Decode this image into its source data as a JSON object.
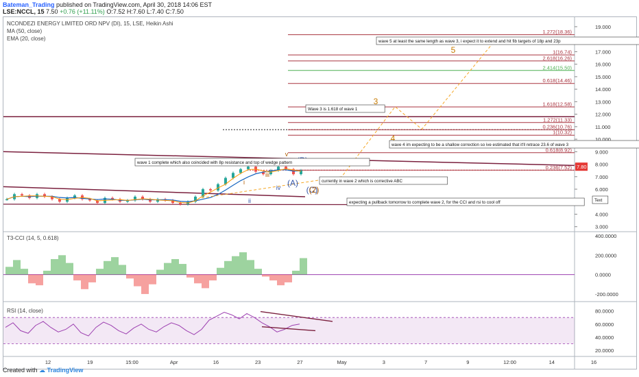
{
  "header": {
    "author": "Bateman_Trading",
    "published": "published on TradingView.com, April 30, 2018 14:06 EST",
    "symbol": "LSE:NCCL, 15",
    "price": "7.50",
    "change": "+0.76 (+11.11%)",
    "ohlc": "O:7.52 H:7.60 L:7.40 C:7.50"
  },
  "legend": {
    "title": "NCONDEZI ENERGY LIMITED ORD NPV (DI), 15, LSE, Heikin Ashi",
    "ma": "MA (50, close)",
    "ema": "EMA (20, close)",
    "cci": "T3-CCI (14, 5, 0.618)",
    "rsi": "RSI (14, close)"
  },
  "footer": {
    "created": "Created with",
    "brand": "TradingView"
  },
  "colors": {
    "bull": "#26a69a",
    "bear": "#ef5350",
    "fib": "#a8323e",
    "wave": "#f5a623",
    "rsi": "#9c3fb0",
    "price_tag": "#e53935"
  },
  "icons": {
    "tv_logo": "tradingview-cloud-icon"
  },
  "chart_data": [
    {
      "type": "candlestick",
      "price_scale": [
        3,
        19
      ],
      "yticks": [
        "19.000",
        "18.000",
        "17.000",
        "16.000",
        "15.000",
        "14.000",
        "13.000",
        "12.000",
        "11.000",
        "10.000",
        "9.000",
        "8.000",
        "7.000",
        "6.000",
        "5.000",
        "4.000",
        "3.000"
      ],
      "xticks": [
        "12",
        "19",
        "15:00",
        "Apr",
        "16",
        "23",
        "27",
        "May",
        "3",
        "7",
        "9",
        "12:00",
        "14",
        "16"
      ],
      "last_price_tag": "7.80",
      "price_path": [
        5.2,
        5.6,
        5.5,
        5.3,
        5.6,
        5.4,
        5.2,
        5.0,
        5.3,
        5.5,
        5.2,
        5.1,
        4.9,
        5.3,
        5.2,
        5.0,
        5.1,
        5.4,
        5.2,
        5.0,
        5.2,
        5.1,
        4.9,
        4.8,
        5.0,
        5.4,
        6.0,
        5.9,
        6.4,
        6.9,
        7.3,
        7.6,
        7.8,
        7.4,
        7.2,
        7.5,
        7.8,
        7.6,
        7.2,
        7.5
      ],
      "fib_levels": [
        {
          "label": "1.272(18.36)",
          "value": 18.36
        },
        {
          "label": "1(16.74)",
          "value": 16.74
        },
        {
          "label": "2.618(16.26)",
          "value": 16.26
        },
        {
          "label": "2.414(15.50)",
          "value": 15.5
        },
        {
          "label": "0.618(14.46)",
          "value": 14.46
        },
        {
          "label": "1.618(12.58)",
          "value": 12.58
        },
        {
          "label": "1.272(11.33)",
          "value": 11.33
        },
        {
          "label": "0.236(10.76)",
          "value": 10.76
        },
        {
          "label": "1(10.32)",
          "value": 10.32
        },
        {
          "label": "0.618(8.92)",
          "value": 8.92
        },
        {
          "label": "0.236(7.52)",
          "value": 7.52
        }
      ],
      "wave_labels": [
        "i",
        "ii",
        "iii",
        "iv",
        "v",
        "(A)",
        "(B)",
        "(C)",
        "(2)",
        "3",
        "4",
        "5"
      ],
      "wave_projection": [
        {
          "label": "(2)",
          "date_index": 38,
          "price": 7.0
        },
        {
          "label": "3",
          "date_index": 44,
          "price": 12.6
        },
        {
          "label": "4",
          "date_index": 47,
          "price": 10.8
        },
        {
          "label": "5",
          "date_index": 55,
          "price": 17.7
        }
      ],
      "annotations": [
        "wave 5 at least the same length as wave 3, i expect it to extend and hit fib targets of 18p and 23p",
        "Wave 3  is 1.618 of wave 1",
        "wave 4 im expecting to be a shallow correction so ive estimated that it'll retrace 23.6 of wave 3",
        "wave 1 complete which also coincided with 8p resistance and top of wedge pattern",
        "currently in wave 2 which is corrective ABC",
        "expecting a pullback tomorrow to complete wave 2, for the CCI and rsi to cool off",
        "Text"
      ]
    },
    {
      "type": "area",
      "name": "T3-CCI (14, 5, 0.618)",
      "yticks": [
        "400.0000",
        "200.0000",
        "0.0000",
        "-200.0000"
      ],
      "ylim": [
        -250,
        400
      ],
      "values": [
        80,
        150,
        60,
        -90,
        -110,
        40,
        160,
        200,
        120,
        -60,
        -150,
        -80,
        60,
        140,
        180,
        100,
        -40,
        -120,
        -200,
        -100,
        50,
        120,
        160,
        110,
        -30,
        -90,
        -140,
        -60,
        70,
        140,
        190,
        230,
        150,
        60,
        -20,
        -60,
        -110,
        -80,
        40,
        170
      ]
    },
    {
      "type": "line",
      "name": "RSI (14, close)",
      "yticks": [
        "80.0000",
        "60.0000",
        "40.0000",
        "20.0000"
      ],
      "ylim": [
        15,
        90
      ],
      "bands": [
        30,
        70
      ],
      "values": [
        55,
        62,
        50,
        46,
        58,
        64,
        55,
        48,
        52,
        60,
        47,
        42,
        55,
        63,
        58,
        50,
        45,
        54,
        60,
        52,
        48,
        56,
        62,
        58,
        50,
        44,
        52,
        66,
        72,
        78,
        74,
        68,
        76,
        70,
        62,
        56,
        48,
        52,
        58,
        60
      ]
    }
  ]
}
